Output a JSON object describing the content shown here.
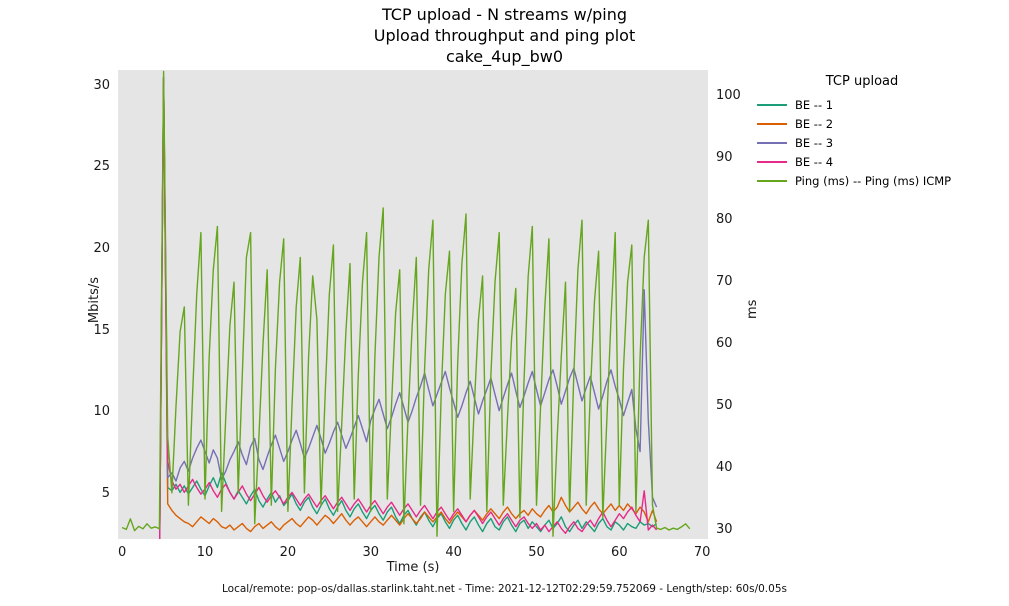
{
  "title": {
    "line1": "TCP upload - N streams w/ping",
    "line2": "Upload throughput and ping plot",
    "line3": "cake_4up_bw0"
  },
  "footer": "Local/remote: pop-os/dallas.starlink.taht.net - Time: 2021-12-12T02:29:59.752069 - Length/step: 60s/0.05s",
  "legend": {
    "title": "TCP upload",
    "items": [
      {
        "label": "BE -- 1",
        "color": "#1b9e77"
      },
      {
        "label": "BE -- 2",
        "color": "#d95f02"
      },
      {
        "label": "BE -- 3",
        "color": "#7570b3"
      },
      {
        "label": "BE -- 4",
        "color": "#e7298a"
      },
      {
        "label": "Ping (ms) -- Ping (ms) ICMP",
        "color": "#66a61e"
      }
    ]
  },
  "chart_data": {
    "type": "line",
    "xlabel": "Time (s)",
    "xlim": [
      -0.5,
      70.7
    ],
    "xticks": [
      0,
      10,
      20,
      30,
      40,
      50,
      60,
      70
    ],
    "left_axis": {
      "label": "Mbits/s",
      "lim": [
        2.25,
        30.95
      ],
      "ticks": [
        5,
        10,
        15,
        20,
        25,
        30
      ]
    },
    "right_axis": {
      "label": "ms",
      "lim": [
        28.55,
        104.25
      ],
      "ticks": [
        30,
        40,
        50,
        60,
        70,
        80,
        90,
        100
      ]
    },
    "background": "#e5e5e5",
    "grid": false,
    "legend_position": "upper-right-outside",
    "series": [
      {
        "name": "BE -- 1",
        "color": "#1b9e77",
        "axis": "left",
        "x0": 4.5,
        "dt": 0.5,
        "y": [
          0,
          30.5,
          5.4,
          5.2,
          5.6,
          5.1,
          5.5,
          5.0,
          5.4,
          5.8,
          5.3,
          4.9,
          5.5,
          6.0,
          5.4,
          6.3,
          5.7,
          5.1,
          4.7,
          5.2,
          4.8,
          4.4,
          4.9,
          5.3,
          4.6,
          4.2,
          4.7,
          5.1,
          4.5,
          4.9,
          4.3,
          4.6,
          5.0,
          4.4,
          4.0,
          4.5,
          4.8,
          4.2,
          3.8,
          4.3,
          4.7,
          4.1,
          3.7,
          4.2,
          4.6,
          4.0,
          3.6,
          4.1,
          4.4,
          3.9,
          3.5,
          4.0,
          4.3,
          3.8,
          3.4,
          3.9,
          4.2,
          3.6,
          3.2,
          3.7,
          4.0,
          3.5,
          3.1,
          3.6,
          3.9,
          3.4,
          3.0,
          3.5,
          3.8,
          3.3,
          2.9,
          3.4,
          3.7,
          3.2,
          2.8,
          3.3,
          3.6,
          3.1,
          2.7,
          3.2,
          3.5,
          3.0,
          2.8,
          3.3,
          3.6,
          3.1,
          2.7,
          3.2,
          3.4,
          2.9,
          3.3,
          3.0,
          2.7,
          3.1,
          3.4,
          2.9,
          3.2,
          3.6,
          3.0,
          2.7,
          3.1,
          3.4,
          2.9,
          3.3,
          3.0,
          2.7,
          3.2,
          3.5,
          3.0,
          2.8,
          3.3,
          3.1,
          2.8,
          3.2,
          3.0,
          2.9,
          3.3,
          3.1,
          3.2,
          3.0,
          3.2
        ]
      },
      {
        "name": "BE -- 2",
        "color": "#d95f02",
        "axis": "left",
        "x0": 4.5,
        "dt": 0.5,
        "y": [
          0,
          30.5,
          4.4,
          4.0,
          3.7,
          3.5,
          3.3,
          3.2,
          3.0,
          3.3,
          3.6,
          3.4,
          3.2,
          3.5,
          3.3,
          3.0,
          2.9,
          3.1,
          2.8,
          3.0,
          3.2,
          2.9,
          2.7,
          3.0,
          3.2,
          2.9,
          3.1,
          3.3,
          3.0,
          2.8,
          3.1,
          3.3,
          3.5,
          3.2,
          3.0,
          3.3,
          3.6,
          3.4,
          3.1,
          3.4,
          3.7,
          3.5,
          3.2,
          3.5,
          3.8,
          3.4,
          3.1,
          3.4,
          3.6,
          3.3,
          3.0,
          3.3,
          3.6,
          3.3,
          3.1,
          3.4,
          3.7,
          3.4,
          3.1,
          3.5,
          3.8,
          3.5,
          3.2,
          3.5,
          3.9,
          3.6,
          3.3,
          3.6,
          3.9,
          3.5,
          3.2,
          3.6,
          3.9,
          3.6,
          3.3,
          3.7,
          4.0,
          3.7,
          3.4,
          3.8,
          4.1,
          3.8,
          3.5,
          3.9,
          4.2,
          3.8,
          3.5,
          3.8,
          4.0,
          3.7,
          4.1,
          3.8,
          3.6,
          4.0,
          4.3,
          3.9,
          4.2,
          4.8,
          4.3,
          3.9,
          4.2,
          4.5,
          4.1,
          3.8,
          4.2,
          4.5,
          4.1,
          3.8,
          4.1,
          4.4,
          4.0,
          4.3,
          4.0,
          4.4,
          4.1,
          3.8,
          4.2,
          3.9,
          3.3,
          4.0,
          3.3
        ]
      },
      {
        "name": "BE -- 3",
        "color": "#7570b3",
        "axis": "left",
        "x0": 4.5,
        "dt": 0.5,
        "y": [
          0,
          30.5,
          6.0,
          6.3,
          5.8,
          6.6,
          7.0,
          6.4,
          7.2,
          7.8,
          8.3,
          7.6,
          6.9,
          7.7,
          7.2,
          5.9,
          6.4,
          7.1,
          7.6,
          8.2,
          7.4,
          6.8,
          7.9,
          8.4,
          7.1,
          6.5,
          7.3,
          8.0,
          8.6,
          7.8,
          7.0,
          7.6,
          8.3,
          8.9,
          8.1,
          7.2,
          7.8,
          8.5,
          9.2,
          8.4,
          7.5,
          8.1,
          8.8,
          9.4,
          8.6,
          7.8,
          8.4,
          9.1,
          9.8,
          9.0,
          8.2,
          9.5,
          10.2,
          10.8,
          9.9,
          9.0,
          9.7,
          10.5,
          11.2,
          10.3,
          9.4,
          10.1,
          10.9,
          11.6,
          12.4,
          11.4,
          10.4,
          11.1,
          11.8,
          12.5,
          11.5,
          10.6,
          9.7,
          10.4,
          11.2,
          11.9,
          10.9,
          9.9,
          10.7,
          11.4,
          12.1,
          11.1,
          10.1,
          10.9,
          11.7,
          12.4,
          11.3,
          10.3,
          11.0,
          11.8,
          12.5,
          11.4,
          10.4,
          11.2,
          12.0,
          12.6,
          11.6,
          10.5,
          11.3,
          12.1,
          12.7,
          11.7,
          10.7,
          11.5,
          12.2,
          11.2,
          10.2,
          11.0,
          11.9,
          12.6,
          11.6,
          10.8,
          9.8,
          10.6,
          11.4,
          9.0,
          7.6,
          17.5,
          9.5,
          4.8,
          4.2
        ]
      },
      {
        "name": "BE -- 4",
        "color": "#e7298a",
        "axis": "left",
        "x0": 4.5,
        "dt": 0.5,
        "y": [
          0,
          30.5,
          7.0,
          5.8,
          5.3,
          5.6,
          5.1,
          5.5,
          5.9,
          5.4,
          5.0,
          5.3,
          5.7,
          5.2,
          4.8,
          5.3,
          5.6,
          5.1,
          4.7,
          5.1,
          5.5,
          5.0,
          4.6,
          5.0,
          5.4,
          4.9,
          4.5,
          4.9,
          5.2,
          4.8,
          4.4,
          4.8,
          5.1,
          4.7,
          4.3,
          4.7,
          5.0,
          4.6,
          4.2,
          4.6,
          4.9,
          4.5,
          4.1,
          4.5,
          4.8,
          4.4,
          4.0,
          4.4,
          4.7,
          4.3,
          3.9,
          4.3,
          4.6,
          4.2,
          3.8,
          4.2,
          4.5,
          4.1,
          3.7,
          4.1,
          4.4,
          4.0,
          3.6,
          4.0,
          4.3,
          3.9,
          3.5,
          3.9,
          4.2,
          3.8,
          3.4,
          3.8,
          4.1,
          3.7,
          3.3,
          3.7,
          4.0,
          3.6,
          3.2,
          3.6,
          3.9,
          3.5,
          3.1,
          3.5,
          3.8,
          3.4,
          3.0,
          3.4,
          3.6,
          3.2,
          2.9,
          3.2,
          2.8,
          3.1,
          2.7,
          3.0,
          3.3,
          2.9,
          2.6,
          3.0,
          3.3,
          2.9,
          2.7,
          3.1,
          3.4,
          3.0,
          3.5,
          3.9,
          3.4,
          3.0,
          3.4,
          3.8,
          3.5,
          3.9,
          4.2,
          3.7,
          3.3,
          5.2,
          2.8,
          3.1,
          2.8
        ]
      },
      {
        "name": "Ping (ms) -- Ping (ms) ICMP",
        "color": "#66a61e",
        "axis": "right",
        "x0": 0,
        "dt": 0.5,
        "y": [
          30.4,
          30.1,
          31.8,
          29.9,
          30.6,
          30.2,
          31.0,
          30.3,
          30.5,
          30.2,
          104,
          45,
          36,
          50,
          62,
          66,
          34,
          52,
          68,
          78,
          35,
          58,
          72,
          79,
          33,
          48,
          63,
          70,
          36,
          55,
          74,
          78,
          31,
          45,
          60,
          72,
          34,
          56,
          70,
          77,
          33,
          50,
          66,
          74,
          36,
          58,
          71,
          64,
          34,
          52,
          68,
          76,
          33,
          47,
          62,
          73,
          35,
          55,
          70,
          78,
          33,
          58,
          74,
          82,
          35,
          50,
          65,
          72,
          31,
          48,
          63,
          74,
          34,
          56,
          72,
          80,
          29,
          52,
          68,
          75,
          33,
          57,
          73,
          81,
          35,
          50,
          64,
          71,
          33,
          55,
          70,
          78,
          34,
          48,
          61,
          69,
          32,
          54,
          71,
          79,
          34,
          50,
          66,
          77,
          29,
          45,
          58,
          70,
          33,
          55,
          72,
          80,
          34,
          52,
          67,
          75,
          32,
          48,
          64,
          78,
          34,
          56,
          70,
          76,
          33,
          58,
          74,
          80,
          34,
          30.3,
          30.1,
          30.4,
          30.0,
          30.3,
          30.1,
          30.5,
          31.0,
          30.2
        ]
      }
    ]
  }
}
